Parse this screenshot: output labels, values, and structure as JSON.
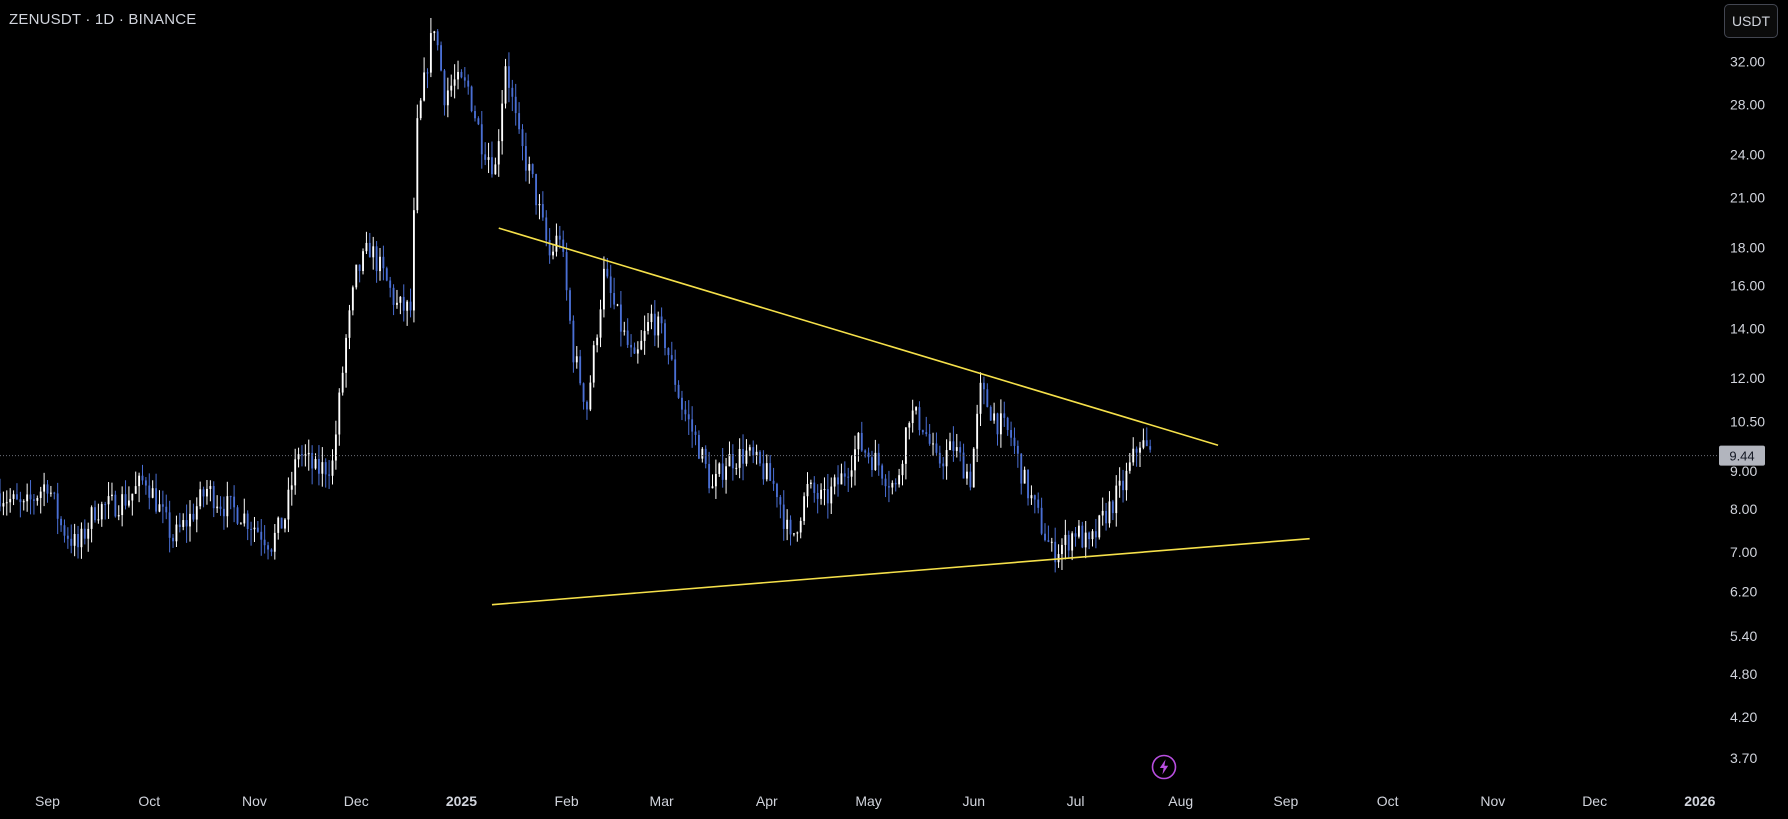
{
  "header": {
    "symbol_title": "ZENUSDT · 1D · BINANCE"
  },
  "currency_button": {
    "label": "USDT"
  },
  "colors": {
    "background": "#000000",
    "up_candle": "#ffffff",
    "down_candle": "#4a6fd4",
    "trendline": "#f5e04a",
    "axis_text": "#d1d4dc",
    "last_price_line": "#6b6f78",
    "last_price_tag_bg": "#b2b5be",
    "flash_icon": "#b84ee0"
  },
  "icons": {
    "alerts": "lightning-icon"
  },
  "chart_data": {
    "type": "candlestick",
    "symbol": "ZENUSDT",
    "interval": "1D",
    "exchange": "BINANCE",
    "y_scale": "log",
    "ylim": [
      3.5,
      38
    ],
    "xlim": [
      "2024-08-18",
      "2026-01-04"
    ],
    "y_ticks": [
      "32.00",
      "28.00",
      "24.00",
      "21.00",
      "18.00",
      "16.00",
      "14.00",
      "12.00",
      "10.50",
      "9.00",
      "8.00",
      "7.00",
      "6.20",
      "5.40",
      "4.80",
      "4.20",
      "3.70"
    ],
    "x_ticks": [
      {
        "date": "2024-09-01",
        "label": "Sep"
      },
      {
        "date": "2024-10-01",
        "label": "Oct"
      },
      {
        "date": "2024-11-01",
        "label": "Nov"
      },
      {
        "date": "2024-12-01",
        "label": "Dec"
      },
      {
        "date": "2025-01-01",
        "label": "2025",
        "bold": true
      },
      {
        "date": "2025-02-01",
        "label": "Feb"
      },
      {
        "date": "2025-03-01",
        "label": "Mar"
      },
      {
        "date": "2025-04-01",
        "label": "Apr"
      },
      {
        "date": "2025-05-01",
        "label": "May"
      },
      {
        "date": "2025-06-01",
        "label": "Jun"
      },
      {
        "date": "2025-07-01",
        "label": "Jul"
      },
      {
        "date": "2025-08-01",
        "label": "Aug"
      },
      {
        "date": "2025-09-01",
        "label": "Sep"
      },
      {
        "date": "2025-10-01",
        "label": "Oct"
      },
      {
        "date": "2025-11-01",
        "label": "Nov"
      },
      {
        "date": "2025-12-01",
        "label": "Dec"
      },
      {
        "date": "2026-01-01",
        "label": "2026",
        "bold": true
      }
    ],
    "last_price": 9.44,
    "last_price_label": "9.44",
    "trendlines": [
      {
        "name": "descending-resistance",
        "from": {
          "date": "2025-01-12",
          "price": 19.1
        },
        "to": {
          "date": "2025-08-12",
          "price": 9.75
        }
      },
      {
        "name": "ascending-support",
        "from": {
          "date": "2025-01-10",
          "price": 5.95
        },
        "to": {
          "date": "2025-09-08",
          "price": 7.3
        }
      }
    ],
    "price_path": [
      [
        "2024-08-18",
        8.4
      ],
      [
        "2024-08-25",
        8.0
      ],
      [
        "2024-09-01",
        8.7
      ],
      [
        "2024-09-05",
        7.6
      ],
      [
        "2024-09-10",
        7.1
      ],
      [
        "2024-09-15",
        8.0
      ],
      [
        "2024-09-20",
        8.1
      ],
      [
        "2024-09-25",
        8.3
      ],
      [
        "2024-09-30",
        8.8
      ],
      [
        "2024-10-04",
        8.0
      ],
      [
        "2024-10-08",
        7.3
      ],
      [
        "2024-10-13",
        7.8
      ],
      [
        "2024-10-18",
        8.5
      ],
      [
        "2024-10-23",
        8.1
      ],
      [
        "2024-10-28",
        7.9
      ],
      [
        "2024-11-01",
        7.6
      ],
      [
        "2024-11-06",
        7.2
      ],
      [
        "2024-11-10",
        7.8
      ],
      [
        "2024-11-14",
        9.6
      ],
      [
        "2024-11-19",
        9.0
      ],
      [
        "2024-11-24",
        9.2
      ],
      [
        "2024-11-28",
        13.5
      ],
      [
        "2024-12-01",
        16.5
      ],
      [
        "2024-12-05",
        18.0
      ],
      [
        "2024-12-09",
        16.5
      ],
      [
        "2024-12-13",
        15.0
      ],
      [
        "2024-12-17",
        14.8
      ],
      [
        "2024-12-19",
        26.0
      ],
      [
        "2024-12-22",
        32.0
      ],
      [
        "2024-12-24",
        36.0
      ],
      [
        "2024-12-27",
        29.0
      ],
      [
        "2024-12-30",
        30.0
      ],
      [
        "2025-01-03",
        29.5
      ],
      [
        "2025-01-07",
        25.0
      ],
      [
        "2025-01-11",
        23.0
      ],
      [
        "2025-01-14",
        32.0
      ],
      [
        "2025-01-18",
        25.0
      ],
      [
        "2025-01-22",
        22.0
      ],
      [
        "2025-01-27",
        17.5
      ],
      [
        "2025-01-30",
        18.8
      ],
      [
        "2025-02-03",
        13.0
      ],
      [
        "2025-02-07",
        11.0
      ],
      [
        "2025-02-12",
        16.5
      ],
      [
        "2025-02-16",
        14.5
      ],
      [
        "2025-02-21",
        12.5
      ],
      [
        "2025-02-26",
        14.5
      ],
      [
        "2025-03-02",
        13.5
      ],
      [
        "2025-03-07",
        11.0
      ],
      [
        "2025-03-12",
        9.7
      ],
      [
        "2025-03-16",
        8.5
      ],
      [
        "2025-03-20",
        9.3
      ],
      [
        "2025-03-26",
        9.5
      ],
      [
        "2025-03-31",
        9.0
      ],
      [
        "2025-04-04",
        8.5
      ],
      [
        "2025-04-08",
        7.2
      ],
      [
        "2025-04-13",
        8.5
      ],
      [
        "2025-04-18",
        8.2
      ],
      [
        "2025-04-23",
        8.8
      ],
      [
        "2025-04-28",
        9.8
      ],
      [
        "2025-05-04",
        9.2
      ],
      [
        "2025-05-09",
        8.5
      ],
      [
        "2025-05-13",
        10.8
      ],
      [
        "2025-05-17",
        10.4
      ],
      [
        "2025-05-21",
        9.2
      ],
      [
        "2025-05-26",
        9.7
      ],
      [
        "2025-05-31",
        8.8
      ],
      [
        "2025-06-03",
        11.5
      ],
      [
        "2025-06-08",
        10.5
      ],
      [
        "2025-06-12",
        10.0
      ],
      [
        "2025-06-16",
        8.7
      ],
      [
        "2025-06-20",
        7.8
      ],
      [
        "2025-06-24",
        7.0
      ],
      [
        "2025-06-28",
        7.2
      ],
      [
        "2025-07-01",
        7.5
      ],
      [
        "2025-07-05",
        7.1
      ],
      [
        "2025-07-10",
        7.9
      ],
      [
        "2025-07-15",
        8.6
      ],
      [
        "2025-07-20",
        9.9
      ],
      [
        "2025-07-23",
        9.44
      ]
    ]
  }
}
